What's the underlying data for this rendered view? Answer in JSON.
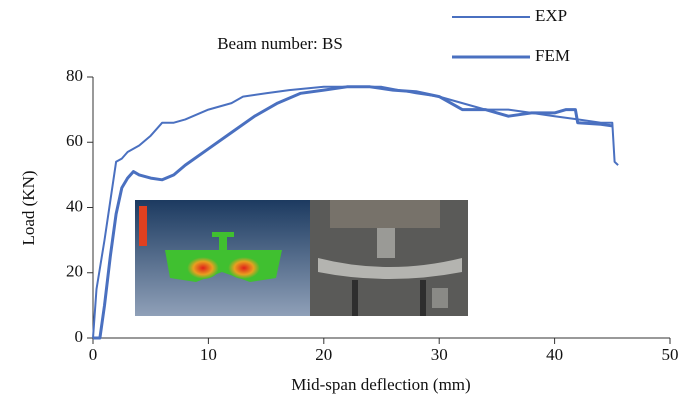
{
  "chart_data": {
    "type": "line",
    "title": "Beam number: BS",
    "x_label": "Mid-span deflection (mm)",
    "y_label": "Load (KN)",
    "xlim": [
      0,
      50
    ],
    "ylim": [
      0,
      80
    ],
    "xticks": [
      0,
      10,
      20,
      30,
      40,
      50
    ],
    "yticks": [
      0,
      20,
      40,
      60,
      80
    ],
    "legend": "upper right",
    "series": [
      {
        "name": "EXP",
        "color": "#4a70c0",
        "x": [
          0,
          0.3,
          1,
          2,
          2.5,
          3,
          4,
          5,
          6,
          7,
          8,
          10,
          12,
          13,
          15,
          17,
          20,
          22,
          25,
          28,
          30,
          32,
          34,
          36,
          38,
          40,
          42,
          44,
          45,
          45.2,
          45.5
        ],
        "values": [
          0,
          15,
          30,
          54,
          55,
          57,
          59,
          62,
          66,
          66,
          67,
          70,
          72,
          74,
          75,
          76,
          77,
          77,
          77,
          75,
          74,
          72,
          70,
          70,
          69,
          68,
          67,
          66,
          66,
          54,
          53
        ]
      },
      {
        "name": "FEM",
        "color": "#4a70c0",
        "x": [
          0,
          0.6,
          1,
          1.5,
          2,
          2.5,
          3,
          3.5,
          4,
          5,
          6,
          7,
          8,
          10,
          12,
          14,
          16,
          18,
          20,
          22,
          24,
          26,
          28,
          30,
          32,
          34,
          36,
          38,
          40,
          41,
          41.8,
          42,
          44,
          45
        ],
        "values": [
          0,
          0,
          10,
          25,
          38,
          46,
          49,
          51,
          50,
          49,
          48.5,
          50,
          53,
          58,
          63,
          68,
          72,
          75,
          76,
          77,
          77,
          76,
          75.5,
          74,
          70,
          70,
          68,
          69,
          69,
          70,
          70,
          66,
          65.5,
          65
        ]
      }
    ]
  }
}
